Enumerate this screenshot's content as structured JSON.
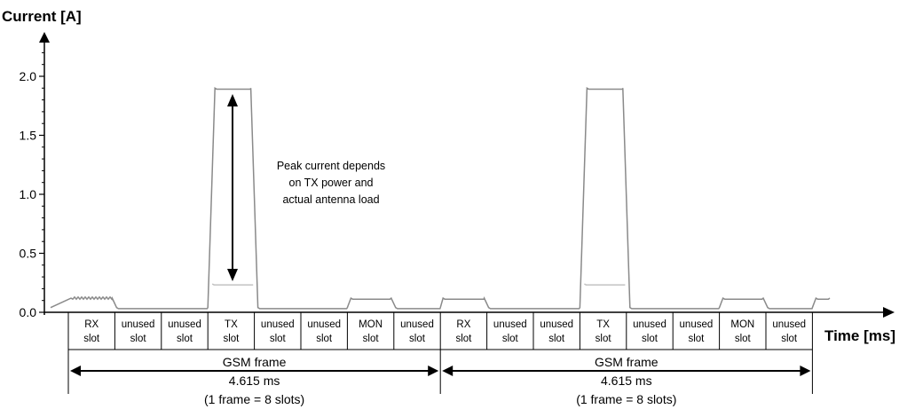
{
  "y_axis": {
    "title": "Current [A]",
    "ticks": [
      "0.0",
      "0.5",
      "1.0",
      "1.5",
      "2.0"
    ]
  },
  "x_axis": {
    "title": "Time [ms]"
  },
  "slots": [
    {
      "line1": "RX",
      "line2": "slot"
    },
    {
      "line1": "unused",
      "line2": "slot"
    },
    {
      "line1": "unused",
      "line2": "slot"
    },
    {
      "line1": "TX",
      "line2": "slot"
    },
    {
      "line1": "unused",
      "line2": "slot"
    },
    {
      "line1": "unused",
      "line2": "slot"
    },
    {
      "line1": "MON",
      "line2": "slot"
    },
    {
      "line1": "unused",
      "line2": "slot"
    },
    {
      "line1": "RX",
      "line2": "slot"
    },
    {
      "line1": "unused",
      "line2": "slot"
    },
    {
      "line1": "unused",
      "line2": "slot"
    },
    {
      "line1": "TX",
      "line2": "slot"
    },
    {
      "line1": "unused",
      "line2": "slot"
    },
    {
      "line1": "unused",
      "line2": "slot"
    },
    {
      "line1": "MON",
      "line2": "slot"
    },
    {
      "line1": "unused",
      "line2": "slot"
    }
  ],
  "frames": [
    {
      "title": "GSM frame",
      "duration": "4.615 ms",
      "note": "(1 frame = 8 slots)"
    },
    {
      "title": "GSM frame",
      "duration": "4.615 ms",
      "note": "(1 frame = 8 slots)"
    }
  ],
  "annotation": {
    "lines": [
      "Peak current depends",
      "on TX power and",
      "actual antenna load"
    ]
  },
  "signal": {
    "peak_current": 1.9,
    "tx_low_current": 0.24,
    "rx_mon_current": 0.12,
    "idle_current": 0.04
  },
  "colors": {
    "trace": "#8a8a8a",
    "tx_low_trace": "#c2c2c2",
    "axis": "#000000"
  }
}
